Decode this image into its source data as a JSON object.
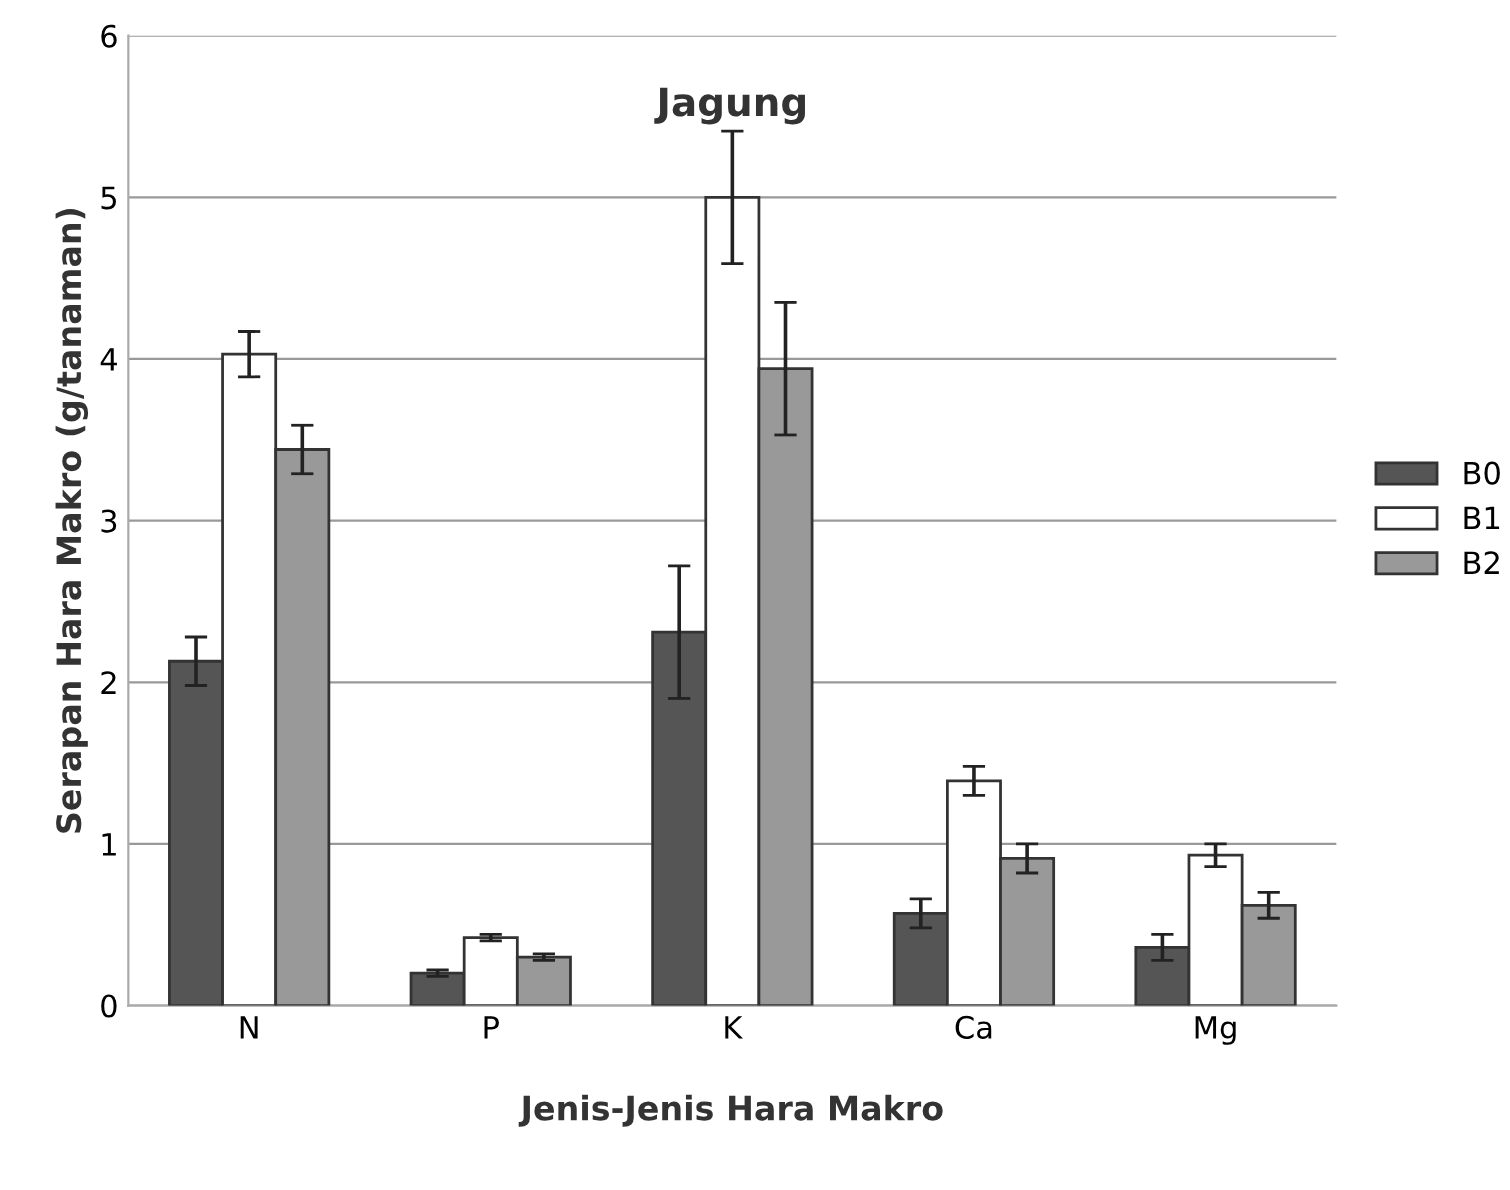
{
  "chart_data": {
    "type": "bar",
    "title": "Jagung",
    "xlabel": "Jenis-Jenis Hara Makro",
    "ylabel": "Serapan Hara Makro (g/tanaman)",
    "categories": [
      "N",
      "P",
      "K",
      "Ca",
      "Mg"
    ],
    "series": [
      {
        "name": "B0",
        "color": "#555555",
        "values": [
          2.13,
          0.2,
          2.31,
          0.57,
          0.36
        ],
        "errors": [
          0.15,
          0.02,
          0.41,
          0.09,
          0.08
        ]
      },
      {
        "name": "B1",
        "color": "#ffffff",
        "values": [
          4.03,
          0.42,
          5.0,
          1.39,
          0.93
        ],
        "errors": [
          0.14,
          0.02,
          0.41,
          0.09,
          0.07
        ]
      },
      {
        "name": "B2",
        "color": "#999999",
        "values": [
          3.44,
          0.3,
          3.94,
          0.91,
          0.62
        ],
        "errors": [
          0.15,
          0.02,
          0.41,
          0.09,
          0.08
        ]
      }
    ],
    "ylim": [
      0,
      6
    ],
    "yticks": [
      0,
      1,
      2,
      3,
      4,
      5,
      6
    ],
    "grid": "y",
    "legend": "right"
  }
}
